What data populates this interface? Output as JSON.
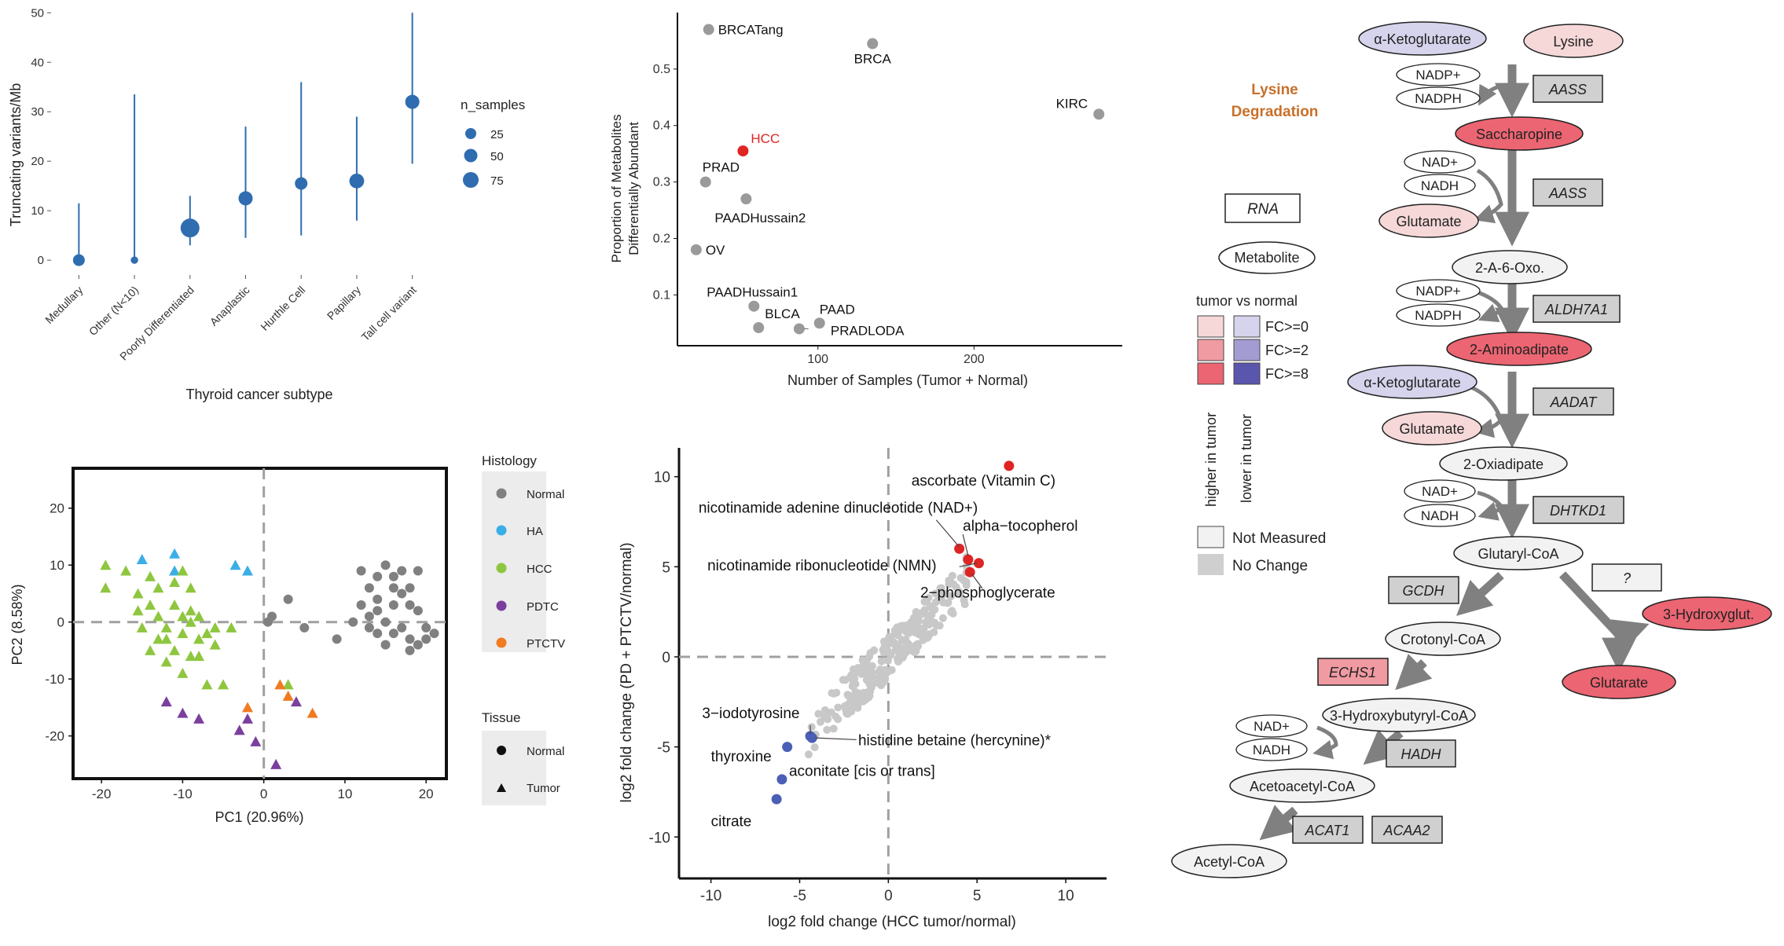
{
  "colors": {
    "point_blue": "#2f6db0",
    "grey_point": "#9a9a9a",
    "light_grey_point": "#c8c8c8",
    "red": "#e02424",
    "dark_blue": "#4a5fb5",
    "ha": "#3aaee6",
    "hcc": "#8ec63f",
    "pdtc": "#7b3f9e",
    "ptctv": "#f07b22",
    "pink_light": "#f6d8d8",
    "pink_mid": "#f09aa2",
    "pink_dark": "#ec6572",
    "lav_light": "#d6d3ec",
    "lav_mid": "#a39cd2",
    "lav_dark": "#5a56ad",
    "gene_box": "#d0d0d0",
    "title_orange": "#c8702a",
    "arrow": "#808080"
  },
  "chart_data": [
    {
      "id": "panelA",
      "type": "scatter",
      "xlabel": "Thyroid cancer subtype",
      "ylabel": "Truncating variants/Mb",
      "ylim": [
        -3,
        51
      ],
      "yticks": [
        0,
        10,
        20,
        30,
        40,
        50
      ],
      "categories": [
        "Medullary",
        "Other (N<10)",
        "Poorly Differentiated",
        "Anaplastic",
        "Hurthle Cell",
        "Papillary",
        "Tall cell variant"
      ],
      "points": [
        {
          "category": "Medullary",
          "value": 0,
          "low": 0,
          "high": 11.5,
          "n_samples": 20
        },
        {
          "category": "Other (N<10)",
          "value": 0,
          "low": 0,
          "high": 33.5,
          "n_samples": 3
        },
        {
          "category": "Poorly Differentiated",
          "value": 6.5,
          "low": 3,
          "high": 13,
          "n_samples": 80
        },
        {
          "category": "Anaplastic",
          "value": 12.5,
          "low": 4.5,
          "high": 27,
          "n_samples": 35
        },
        {
          "category": "Hurthle Cell",
          "value": 15.5,
          "low": 5,
          "high": 36,
          "n_samples": 25
        },
        {
          "category": "Papillary",
          "value": 16,
          "low": 8,
          "high": 29,
          "n_samples": 40
        },
        {
          "category": "Tall cell variant",
          "value": 32,
          "low": 19.5,
          "high": 50,
          "n_samples": 35
        }
      ],
      "legend": {
        "title": "n_samples",
        "entries": [
          {
            "label": "25",
            "size": 25
          },
          {
            "label": "50",
            "size": 50
          },
          {
            "label": "75",
            "size": 75
          }
        ],
        "placement": "right"
      }
    },
    {
      "id": "panelB",
      "type": "scatter",
      "xlabel": "Number of Samples (Tumor + Normal)",
      "ylabel": "Proportion of Metabolites\nDifferentially Abundant",
      "xlim": [
        10,
        295
      ],
      "ylim": [
        0.01,
        0.6
      ],
      "xticks": [
        100,
        200
      ],
      "yticks": [
        0.1,
        0.2,
        0.3,
        0.4,
        0.5
      ],
      "points": [
        {
          "label": "BRCATang",
          "x": 30,
          "y": 0.57,
          "highlight": false
        },
        {
          "label": "BRCA",
          "x": 135,
          "y": 0.545,
          "highlight": false
        },
        {
          "label": "KIRC",
          "x": 280,
          "y": 0.42,
          "highlight": false
        },
        {
          "label": "HCC",
          "x": 52,
          "y": 0.355,
          "highlight": true
        },
        {
          "label": "PRAD",
          "x": 28,
          "y": 0.3,
          "highlight": false
        },
        {
          "label": "PAADHussain2",
          "x": 54,
          "y": 0.27,
          "highlight": false
        },
        {
          "label": "OV",
          "x": 22,
          "y": 0.18,
          "highlight": false
        },
        {
          "label": "PAADHussain1",
          "x": 59,
          "y": 0.08,
          "highlight": false
        },
        {
          "label": "BLCA",
          "x": 62,
          "y": 0.042,
          "highlight": false
        },
        {
          "label": "PAAD",
          "x": 101,
          "y": 0.05,
          "highlight": false
        },
        {
          "label": "PRADLODA",
          "x": 88,
          "y": 0.04,
          "highlight": false
        }
      ]
    },
    {
      "id": "panelC",
      "type": "scatter",
      "xlabel": "PC1 (20.96%)",
      "ylabel": "PC2 (8.58%)",
      "xlim": [
        -23.5,
        22.5
      ],
      "ylim": [
        -27.5,
        27
      ],
      "xticks": [
        -20,
        -10,
        0,
        10,
        20
      ],
      "yticks": [
        -20,
        -10,
        0,
        10,
        20
      ],
      "legend_histology": {
        "title": "Histology",
        "entries": [
          "Normal",
          "HA",
          "HCC",
          "PDTC",
          "PTCTV"
        ]
      },
      "legend_tissue": {
        "title": "Tissue",
        "entries": [
          "Normal",
          "Tumor"
        ]
      },
      "series": [
        {
          "name": "Normal",
          "shape": "circle",
          "points": [
            [
              12,
              9
            ],
            [
              13,
              6
            ],
            [
              14,
              4
            ],
            [
              15,
              10
            ],
            [
              16,
              8
            ],
            [
              17,
              9
            ],
            [
              18,
              6
            ],
            [
              19,
              9
            ],
            [
              12,
              3
            ],
            [
              13,
              1
            ],
            [
              14,
              2
            ],
            [
              15,
              0
            ],
            [
              16,
              3
            ],
            [
              17,
              5
            ],
            [
              18,
              3
            ],
            [
              19,
              2
            ],
            [
              13,
              -1
            ],
            [
              14,
              -2
            ],
            [
              16,
              -2
            ],
            [
              17,
              -1
            ],
            [
              18,
              -3
            ],
            [
              20,
              -1
            ],
            [
              21,
              -2
            ],
            [
              15,
              -4
            ],
            [
              18,
              -5
            ],
            [
              19,
              -4
            ],
            [
              20,
              -3
            ],
            [
              11,
              0
            ],
            [
              14,
              8
            ],
            [
              16,
              6
            ],
            [
              3,
              4
            ],
            [
              1,
              1
            ],
            [
              5,
              -1
            ],
            [
              9,
              -3
            ],
            [
              0.5,
              0
            ]
          ]
        },
        {
          "name": "HA",
          "shape": "triangle",
          "points": [
            [
              -15,
              11
            ],
            [
              -11,
              12
            ],
            [
              -3.5,
              10
            ],
            [
              -2,
              9
            ],
            [
              -11,
              9
            ]
          ]
        },
        {
          "name": "HCC",
          "shape": "triangle",
          "points": [
            [
              -19.5,
              10
            ],
            [
              -19.5,
              6
            ],
            [
              -17,
              9
            ],
            [
              -15.5,
              5
            ],
            [
              -14,
              8
            ],
            [
              -13,
              6
            ],
            [
              -11,
              7
            ],
            [
              -10,
              9
            ],
            [
              -9,
              6
            ],
            [
              -14,
              3
            ],
            [
              -15.5,
              2
            ],
            [
              -13,
              1
            ],
            [
              -11,
              3
            ],
            [
              -10,
              1
            ],
            [
              -9,
              2
            ],
            [
              -12,
              -1
            ],
            [
              -10,
              -2
            ],
            [
              -8,
              -3
            ],
            [
              -7,
              -2
            ],
            [
              -6,
              -1
            ],
            [
              -4,
              -1
            ],
            [
              -13,
              -3
            ],
            [
              -11,
              -5
            ],
            [
              -9,
              -6
            ],
            [
              -8,
              -6
            ],
            [
              -6,
              -4
            ],
            [
              -12,
              -7
            ],
            [
              -10,
              -9
            ],
            [
              -7,
              -11
            ],
            [
              -5,
              -11
            ],
            [
              -14,
              -5
            ],
            [
              -15,
              -1
            ],
            [
              -8,
              1
            ],
            [
              -12,
              -3
            ],
            [
              -9,
              0
            ],
            [
              3,
              -11
            ]
          ]
        },
        {
          "name": "PDTC",
          "shape": "triangle",
          "points": [
            [
              -12,
              -14
            ],
            [
              -10,
              -16
            ],
            [
              -8,
              -17
            ],
            [
              -2,
              -17
            ],
            [
              -3,
              -19
            ],
            [
              -1,
              -21
            ],
            [
              1.5,
              -25
            ],
            [
              4,
              -14
            ]
          ]
        },
        {
          "name": "PTCTV",
          "shape": "triangle",
          "points": [
            [
              2,
              -11
            ],
            [
              3,
              -13
            ],
            [
              6,
              -16
            ],
            [
              -2,
              -15
            ]
          ]
        }
      ]
    },
    {
      "id": "panelD",
      "type": "scatter",
      "xlabel": "log2 fold change (HCC tumor/normal)",
      "ylabel": "log2 fold change (PD + PTCTV/normal)",
      "xlim": [
        -11.8,
        12.3
      ],
      "ylim": [
        -12.3,
        11.6
      ],
      "xticks": [
        -10,
        -5,
        0,
        5,
        10
      ],
      "yticks": [
        -10,
        -5,
        0,
        5,
        10
      ],
      "highlighted_points": [
        {
          "label": "ascorbate (Vitamin C)",
          "x": 6.8,
          "y": 10.6,
          "group": "up"
        },
        {
          "label": "nicotinamide adenine dinucleotide (NAD+)",
          "x": 4.0,
          "y": 6.0,
          "group": "up"
        },
        {
          "label": "alpha−tocopherol",
          "x": 4.5,
          "y": 5.4,
          "group": "up"
        },
        {
          "label": "nicotinamide ribonucleotide (NMN)",
          "x": 5.1,
          "y": 5.2,
          "group": "up"
        },
        {
          "label": "2−phosphoglycerate",
          "x": 4.6,
          "y": 4.7,
          "group": "up"
        },
        {
          "label": "3−iodotyrosine",
          "x": -4.4,
          "y": -4.4,
          "group": "down"
        },
        {
          "label": "histidine betaine (hercynine)*",
          "x": -4.3,
          "y": -4.5,
          "group": "down"
        },
        {
          "label": "thyroxine",
          "x": -5.7,
          "y": -5.0,
          "group": "down"
        },
        {
          "label": "aconitate [cis or trans]",
          "x": -6.0,
          "y": -6.8,
          "group": "down"
        },
        {
          "label": "citrate",
          "x": -6.3,
          "y": -7.9,
          "group": "down"
        }
      ]
    }
  ],
  "pathway": {
    "title_line1": "Lysine",
    "title_line2": "Degradation",
    "legend": {
      "rna_label": "RNA",
      "metabolite_label": "Metabolite",
      "tumor_vs_normal": "tumor vs normal",
      "fc0": "FC>=0",
      "fc2": "FC>=2",
      "fc8": "FC>=8",
      "higher_in_tumor": "higher in tumor",
      "lower_in_tumor": "lower in tumor",
      "not_measured": "Not Measured",
      "no_change": "No Change"
    },
    "metabolites": {
      "akg1": "α-Ketoglutarate",
      "lysine": "Lysine",
      "saccharopine": "Saccharopine",
      "glutamate1": "Glutamate",
      "oxo": "2-A-6-Oxo.",
      "aminoadipate": "2-Aminoadipate",
      "akg2": "α-Ketoglutarate",
      "glutamate2": "Glutamate",
      "oxiadipate": "2-Oxiadipate",
      "glutarylcoa": "Glutaryl-CoA",
      "crotonylcoa": "Crotonyl-CoA",
      "hydroxyglut": "3-Hydroxyglut.",
      "glutarate": "Glutarate",
      "hbcoa": "3-Hydroxybutyryl-CoA",
      "acetoacetyl": "Acetoacetyl-CoA",
      "acetylcoa": "Acetyl-CoA"
    },
    "cofactors": {
      "nadp1": "NADP+",
      "nadph1": "NADPH",
      "nad1": "NAD+",
      "nadh1": "NADH",
      "nadp2": "NADP+",
      "nadph2": "NADPH",
      "nad2": "NAD+",
      "nadh2": "NADH",
      "nad3": "NAD+",
      "nadh3": "NADH"
    },
    "genes": {
      "aass1": "AASS",
      "aass2": "AASS",
      "aldh7a1": "ALDH7A1",
      "aadat": "AADAT",
      "dhtkd1": "DHTKD1",
      "gcdh": "GCDH",
      "unknown": "?",
      "echs1": "ECHS1",
      "hadh": "HADH",
      "acat1": "ACAT1",
      "acaa2": "ACAA2"
    }
  }
}
